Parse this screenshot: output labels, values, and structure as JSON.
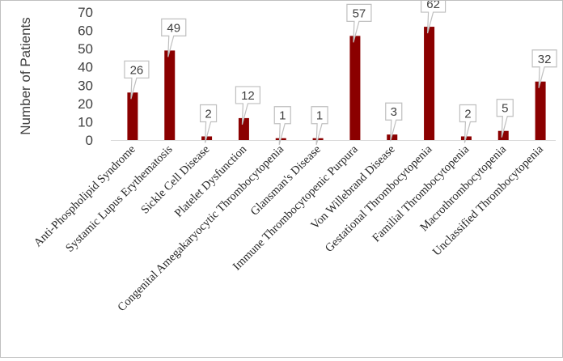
{
  "chart_data": {
    "type": "bar",
    "title": "",
    "xlabel": "",
    "ylabel": "Number of Patients",
    "ylim": [
      0,
      70
    ],
    "yticks": [
      0,
      10,
      20,
      30,
      40,
      50,
      60,
      70
    ],
    "grid": false,
    "legend": "none",
    "bar_color": "#8b0000",
    "categories": [
      "Anti-Phospholipid Syndrome",
      "Systamic Lupus Erythematosis",
      "Sickle Cell Disease",
      "Platelet Dysfunction",
      "Congenital Amegakaryocytic Thrombocytopenia",
      "Glansman's Disease",
      "Immune Thrombocytopenic Purpura",
      "Von Willebrand Disease",
      "Gestational Thrombocytopenia",
      "Familial Thrombocytopenia",
      "Macrothrombocytopenia",
      "Unclassified Thrombocytopenia"
    ],
    "values": [
      26,
      49,
      2,
      12,
      1,
      1,
      57,
      3,
      62,
      2,
      5,
      32
    ]
  }
}
